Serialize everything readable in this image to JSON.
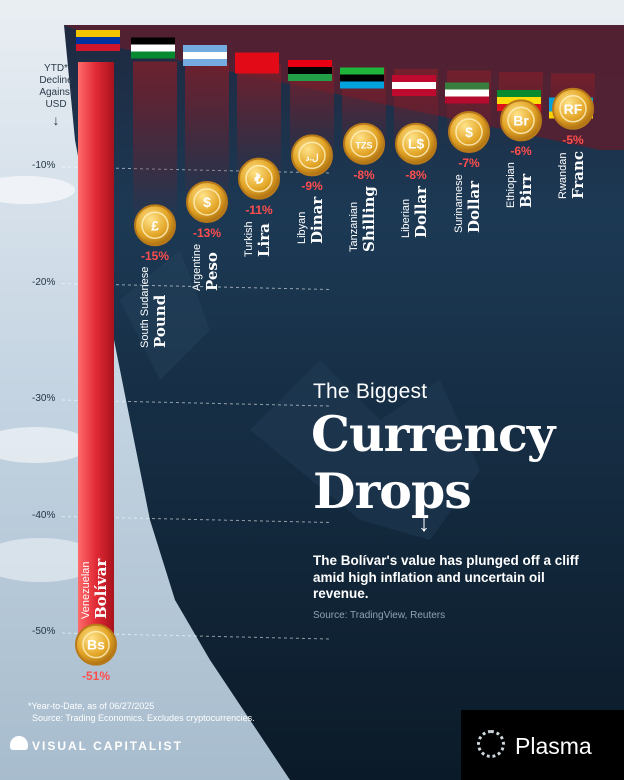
{
  "chart_data": {
    "type": "bar",
    "title_line1": "The Biggest",
    "title_line2": "Currency",
    "title_line3": "Drops",
    "description": "The Bolívar's value has plunged off a cliff amid high inflation and uncertain oil revenue.",
    "source": "Source: TradingView, Reuters",
    "ylabel": [
      "YTD*",
      "Decline",
      "Against",
      "USD"
    ],
    "yticks": [
      "-10%",
      "-20%",
      "-30%",
      "-40%",
      "-50%"
    ],
    "ylim": [
      0,
      -55
    ],
    "categories": [
      {
        "country": "Venezuelan",
        "currency": "Bolívar",
        "value": -51,
        "label": "-51%",
        "symbol": "Bs"
      },
      {
        "country": "South Sudanese",
        "currency": "Pound",
        "value": -15,
        "label": "-15%",
        "symbol": "£"
      },
      {
        "country": "Argentine",
        "currency": "Peso",
        "value": -13,
        "label": "-13%",
        "symbol": "$"
      },
      {
        "country": "Turkish",
        "currency": "Lira",
        "value": -11,
        "label": "-11%",
        "symbol": "₺"
      },
      {
        "country": "Libyan",
        "currency": "Dinar",
        "value": -9,
        "label": "-9%",
        "symbol": "ل.د"
      },
      {
        "country": "Tanzanian",
        "currency": "Shilling",
        "value": -8,
        "label": "-8%",
        "symbol": "TZS"
      },
      {
        "country": "Liberian",
        "currency": "Dollar",
        "value": -8,
        "label": "-8%",
        "symbol": "L$"
      },
      {
        "country": "Surinamese",
        "currency": "Dollar",
        "value": -7,
        "label": "-7%",
        "symbol": "$"
      },
      {
        "country": "Ethiopian",
        "currency": "Birr",
        "value": -6,
        "label": "-6%",
        "symbol": "Br"
      },
      {
        "country": "Rwandan",
        "currency": "Franc",
        "value": -5,
        "label": "-5%",
        "symbol": "RF"
      }
    ],
    "colors": {
      "bar": "#e02a35",
      "coin": "#e3a526",
      "label": "#ff4e4e"
    }
  },
  "footnote_line1": "*Year-to-Date, as of 06/27/2025",
  "footnote_line2": "Source: Trading Economics. Excludes cryptocurrencies.",
  "brand_left": "VISUAL CAPITALIST",
  "brand_right": "Plasma"
}
